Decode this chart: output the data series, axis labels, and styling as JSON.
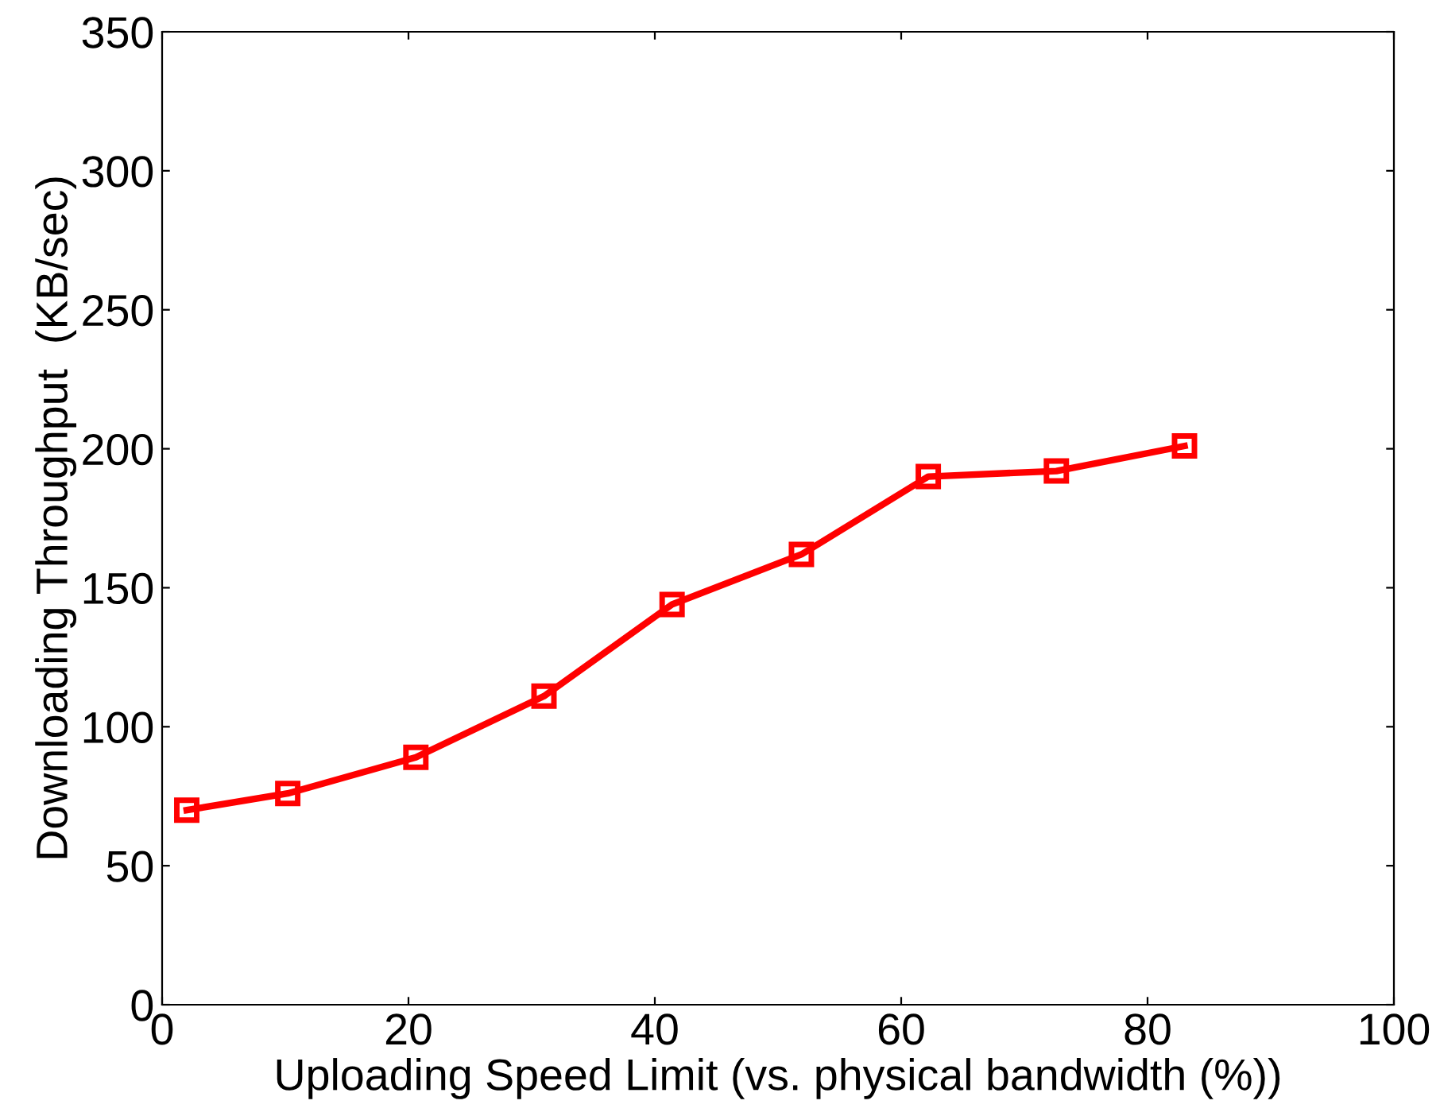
{
  "chart_data": {
    "type": "line",
    "xlabel": "Uploading Speed Limit (vs. physical bandwidth (%))",
    "ylabel": "Downloading Throughput  (KB/sec)",
    "series": [
      {
        "color": "#ff0000",
        "x": [
          2,
          10.2,
          20.6,
          31,
          41.4,
          51.9,
          62.2,
          72.6,
          83
        ],
        "values": [
          70,
          76,
          89,
          111,
          144,
          162,
          190,
          192,
          201
        ]
      }
    ],
    "xlim": [
      0,
      100
    ],
    "xticks": [
      0,
      20,
      40,
      60,
      80,
      100
    ],
    "ylim": [
      0,
      350
    ],
    "yticks": [
      0,
      50,
      100,
      150,
      200,
      250,
      300,
      350
    ],
    "marker": "square",
    "line_style": "solid",
    "grid": false,
    "legend": false
  }
}
